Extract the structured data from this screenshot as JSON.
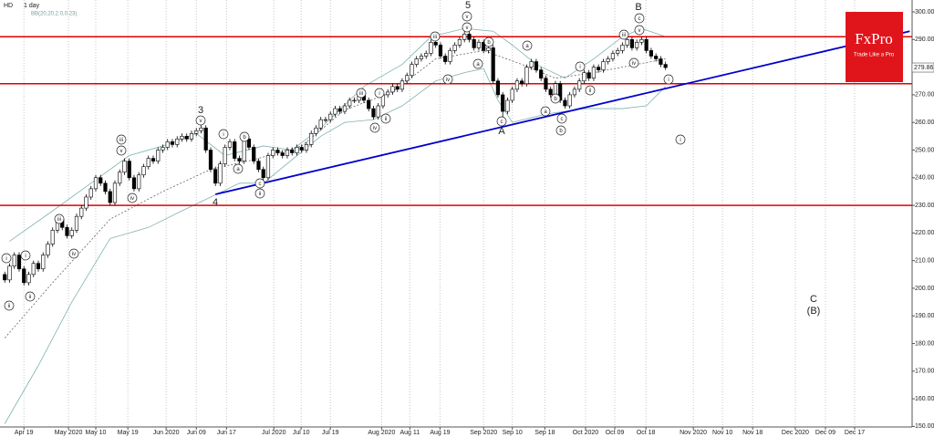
{
  "chart_data": {
    "type": "candlestick",
    "title": "HD",
    "subtitle": "1 day",
    "indicator": {
      "label": "BB(20,20,2.0,0.23)",
      "color": "#7fb2b2",
      "upper": {
        "x": [
          1,
          10,
          18,
          26,
          33,
          40,
          46,
          54,
          60,
          66,
          75,
          83,
          89,
          96,
          102,
          106,
          111,
          117,
          123,
          129,
          133,
          138
        ],
        "values": [
          217,
          228,
          238,
          248,
          251.5,
          256,
          248,
          251.5,
          250,
          258,
          273,
          281,
          291,
          294,
          293,
          288,
          281,
          276,
          283,
          291,
          294,
          291
        ]
      },
      "middle": {
        "x": [
          0,
          10,
          22,
          33,
          43,
          52,
          62,
          71,
          81,
          90,
          100,
          108,
          115,
          123,
          132,
          138
        ],
        "values": [
          182,
          202,
          225,
          235,
          243,
          246.5,
          251.5,
          264.5,
          271,
          283,
          286,
          281,
          276,
          278,
          281,
          283
        ]
      },
      "lower": {
        "x": [
          0,
          7,
          14,
          22,
          30,
          37,
          43,
          49,
          54,
          60,
          66,
          71,
          77,
          83,
          90,
          96,
          100,
          103,
          106,
          113,
          121,
          129,
          134,
          138
        ],
        "values": [
          151,
          172,
          195,
          218,
          222,
          228,
          233,
          238,
          238,
          246.5,
          255,
          260,
          261,
          266,
          275,
          278,
          279.5,
          268,
          260,
          263,
          265,
          265,
          266,
          273
        ]
      }
    },
    "candles": {
      "open": [
        205,
        203,
        208,
        212,
        207,
        202,
        205,
        209,
        207,
        212,
        216,
        221,
        225,
        222,
        219,
        221,
        226,
        229,
        233,
        236,
        240,
        238,
        235,
        231,
        238,
        242,
        246,
        240,
        236,
        241,
        244,
        247,
        246,
        250,
        251,
        253,
        252,
        254,
        255,
        254,
        256,
        257,
        258,
        250,
        243,
        238,
        245,
        251,
        253,
        247,
        246,
        254,
        251,
        246,
        243,
        240,
        248,
        250,
        249,
        248,
        250,
        249,
        251,
        250,
        252,
        256,
        258,
        261,
        261,
        263,
        265,
        264,
        266,
        268,
        268,
        270,
        268,
        265,
        262,
        266,
        270,
        271,
        273,
        272,
        275,
        277,
        281,
        283,
        284,
        285,
        289,
        288,
        284,
        282,
        286,
        288,
        290,
        292,
        290,
        287,
        289,
        286,
        287,
        275,
        270,
        264,
        268,
        272,
        275,
        274,
        280,
        282,
        279,
        276,
        272,
        270,
        274,
        268,
        266,
        270,
        272,
        275,
        278,
        276,
        280,
        279,
        282,
        283,
        285,
        286,
        288,
        290,
        287,
        289,
        290,
        286,
        284,
        283,
        281
      ],
      "high": [
        206,
        209,
        213,
        213,
        208,
        206,
        210,
        210,
        213,
        217,
        222,
        226,
        226,
        223,
        222,
        227,
        230,
        234,
        237,
        241,
        241,
        239,
        236,
        239,
        243,
        247,
        247,
        241,
        242,
        245,
        248,
        248,
        251,
        252,
        254,
        254,
        255,
        256,
        256,
        257,
        258,
        259,
        259,
        251,
        244,
        246,
        252,
        254,
        254,
        248,
        255,
        255,
        252,
        247,
        244,
        249,
        251,
        251,
        250,
        251,
        251,
        252,
        252,
        253,
        257,
        259,
        262,
        262,
        264,
        266,
        266,
        267,
        269,
        269,
        271,
        271,
        269,
        266,
        267,
        271,
        272,
        274,
        274,
        276,
        278,
        282,
        284,
        285,
        286,
        290,
        290,
        289,
        285,
        287,
        289,
        291,
        293,
        293,
        291,
        290,
        290,
        288,
        288,
        276,
        271,
        269,
        273,
        276,
        276,
        281,
        283,
        283,
        280,
        277,
        273,
        275,
        275,
        269,
        271,
        273,
        276,
        279,
        279,
        281,
        281,
        283,
        284,
        286,
        287,
        289,
        291,
        291,
        290,
        291,
        291,
        287,
        285,
        284,
        282
      ],
      "low": [
        202,
        202,
        207,
        206,
        201,
        201,
        204,
        206,
        206,
        211,
        215,
        220,
        221,
        218,
        218,
        220,
        225,
        228,
        232,
        235,
        237,
        234,
        230,
        230,
        237,
        241,
        239,
        235,
        235,
        240,
        243,
        245,
        245,
        249,
        250,
        251,
        251,
        253,
        253,
        253,
        255,
        256,
        249,
        242,
        237,
        237,
        244,
        250,
        246,
        245,
        245,
        250,
        245,
        242,
        239,
        239,
        247,
        248,
        247,
        247,
        248,
        248,
        249,
        249,
        251,
        255,
        257,
        260,
        260,
        262,
        263,
        263,
        265,
        267,
        267,
        267,
        264,
        261,
        261,
        265,
        269,
        270,
        271,
        271,
        274,
        276,
        280,
        282,
        283,
        284,
        287,
        283,
        281,
        281,
        285,
        287,
        289,
        289,
        286,
        286,
        285,
        285,
        274,
        269,
        261,
        263,
        267,
        271,
        273,
        273,
        279,
        278,
        275,
        271,
        269,
        269,
        267,
        265,
        265,
        269,
        271,
        274,
        275,
        275,
        278,
        278,
        281,
        282,
        284,
        285,
        287,
        286,
        286,
        288,
        285,
        283,
        282,
        280,
        279
      ],
      "close": [
        203,
        208,
        212,
        207,
        202,
        205,
        209,
        207,
        212,
        216,
        221,
        225,
        222,
        219,
        221,
        226,
        229,
        233,
        236,
        240,
        238,
        235,
        231,
        238,
        242,
        246,
        240,
        236,
        241,
        244,
        247,
        246,
        250,
        251,
        253,
        252,
        254,
        255,
        254,
        256,
        257,
        258,
        250,
        243,
        238,
        245,
        251,
        253,
        247,
        246,
        254,
        251,
        246,
        243,
        240,
        248,
        250,
        249,
        248,
        250,
        249,
        251,
        250,
        252,
        256,
        258,
        261,
        261,
        263,
        265,
        264,
        266,
        268,
        268,
        270,
        268,
        265,
        262,
        266,
        270,
        271,
        273,
        272,
        275,
        277,
        281,
        283,
        284,
        285,
        289,
        288,
        284,
        282,
        286,
        288,
        290,
        292,
        290,
        287,
        289,
        286,
        287,
        275,
        270,
        264,
        268,
        272,
        275,
        274,
        280,
        282,
        279,
        276,
        272,
        270,
        274,
        268,
        266,
        270,
        272,
        275,
        278,
        276,
        280,
        279,
        282,
        283,
        285,
        286,
        288,
        290,
        287,
        289,
        290,
        286,
        284,
        283,
        281,
        279.86
      ]
    },
    "up_color": "#ffffff",
    "down_color": "#000000",
    "xlim": [
      -1,
      189.5
    ],
    "xticks": [
      {
        "value": 4,
        "label": "Apr 19"
      },
      {
        "value": 13.3,
        "label": "May 2020"
      },
      {
        "value": 19,
        "label": "May 10"
      },
      {
        "value": 25.7,
        "label": "May 19"
      },
      {
        "value": 33.7,
        "label": "Jun 2020"
      },
      {
        "value": 40,
        "label": "Jun 09"
      },
      {
        "value": 46.3,
        "label": "Jun 17"
      },
      {
        "value": 56.2,
        "label": "Jul 2020"
      },
      {
        "value": 61.9,
        "label": "Jul 10"
      },
      {
        "value": 68,
        "label": "Jul 19"
      },
      {
        "value": 78.7,
        "label": "Aug 2020"
      },
      {
        "value": 84.6,
        "label": "Aug 11"
      },
      {
        "value": 90.9,
        "label": "Aug 19"
      },
      {
        "value": 100,
        "label": "Sep 2020"
      },
      {
        "value": 106,
        "label": "Sep 10"
      },
      {
        "value": 112.8,
        "label": "Sep 18"
      },
      {
        "value": 121.3,
        "label": "Oct 2020"
      },
      {
        "value": 127.4,
        "label": "Oct 09"
      },
      {
        "value": 133.9,
        "label": "Oct 18"
      },
      {
        "value": 143.8,
        "label": "Nov 2020"
      },
      {
        "value": 149.9,
        "label": "Nov 10"
      },
      {
        "value": 156.2,
        "label": "Nov 18"
      },
      {
        "value": 165.1,
        "label": "Dec 2020"
      },
      {
        "value": 171.4,
        "label": "Dec 09"
      },
      {
        "value": 177.5,
        "label": "Dec 17"
      }
    ],
    "ylim": [
      149.8,
      304.3
    ],
    "yticks": [
      {
        "value": 300,
        "label": "300.00"
      },
      {
        "value": 290,
        "label": "290.00"
      },
      {
        "value": 280,
        "label": "280.00"
      },
      {
        "value": 270,
        "label": "270.00"
      },
      {
        "value": 260,
        "label": "260.00"
      },
      {
        "value": 250,
        "label": "250.00"
      },
      {
        "value": 240,
        "label": "240.00"
      },
      {
        "value": 230,
        "label": "230.00"
      },
      {
        "value": 220,
        "label": "220.00"
      },
      {
        "value": 210,
        "label": "210.00"
      },
      {
        "value": 200,
        "label": "200.00"
      },
      {
        "value": 190,
        "label": "190.00"
      },
      {
        "value": 180,
        "label": "180.00"
      },
      {
        "value": 170,
        "label": "170.00"
      },
      {
        "value": 160,
        "label": "160.00"
      },
      {
        "value": 150,
        "label": "150.00"
      }
    ],
    "levels": {
      "values": [
        291,
        274,
        230
      ],
      "color": "#e00000"
    },
    "trendline": {
      "x": [
        44,
        189
      ],
      "values": [
        234,
        293
      ],
      "color": "#0000cc"
    },
    "wave_labels": [
      "i",
      "ii",
      "i",
      "ii",
      "iii",
      "iv",
      "iii",
      "v",
      "iv",
      "v",
      "i",
      "b",
      "a",
      "c",
      "ii",
      "iii",
      "i",
      "ii",
      "iv",
      "iii",
      "iv",
      "v",
      "v",
      "b",
      "a",
      "a",
      "b",
      "c",
      "a",
      "c",
      "b",
      "ii",
      "i",
      "iii",
      "iv",
      "c",
      "v",
      "i",
      "i"
    ],
    "labels": [
      "3",
      "4",
      "5",
      "A",
      "B",
      "C",
      "(B)"
    ]
  },
  "logo": {
    "title": "FxPro",
    "tagline": "Trade Like a Pro"
  }
}
